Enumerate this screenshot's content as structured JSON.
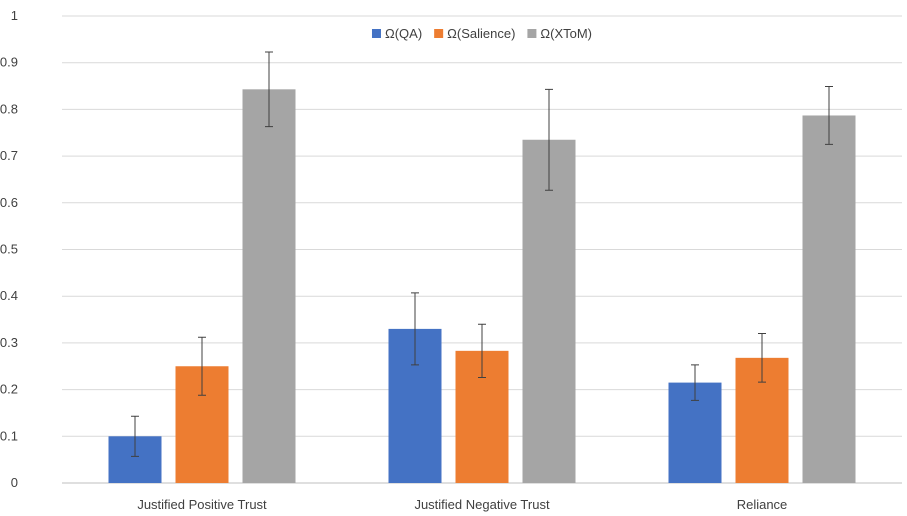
{
  "chart_data": {
    "type": "bar",
    "title": "",
    "xlabel": "",
    "ylabel": "",
    "categories": [
      "Justified Positive Trust",
      "Justified Negative Trust",
      "Reliance"
    ],
    "series": [
      {
        "name": "Ω(QA)",
        "color": "#4472c4",
        "values": [
          0.1,
          0.33,
          0.215
        ],
        "error": [
          0.043,
          0.077,
          0.038
        ]
      },
      {
        "name": "Ω(Salience)",
        "color": "#ed7d31",
        "values": [
          0.25,
          0.283,
          0.268
        ],
        "error": [
          0.062,
          0.057,
          0.052
        ]
      },
      {
        "name": "Ω(XToM)",
        "color": "#a5a5a5",
        "values": [
          0.843,
          0.735,
          0.787
        ],
        "error": [
          0.08,
          0.108,
          0.062
        ]
      }
    ],
    "ylim": [
      0,
      1
    ],
    "yticks": [
      "0",
      "0.1",
      "0.2",
      "0.3",
      "0.4",
      "0.5",
      "0.6",
      "0.7",
      "0.8",
      "0.9",
      "1"
    ],
    "grid": true,
    "legend_position": "top-center"
  }
}
